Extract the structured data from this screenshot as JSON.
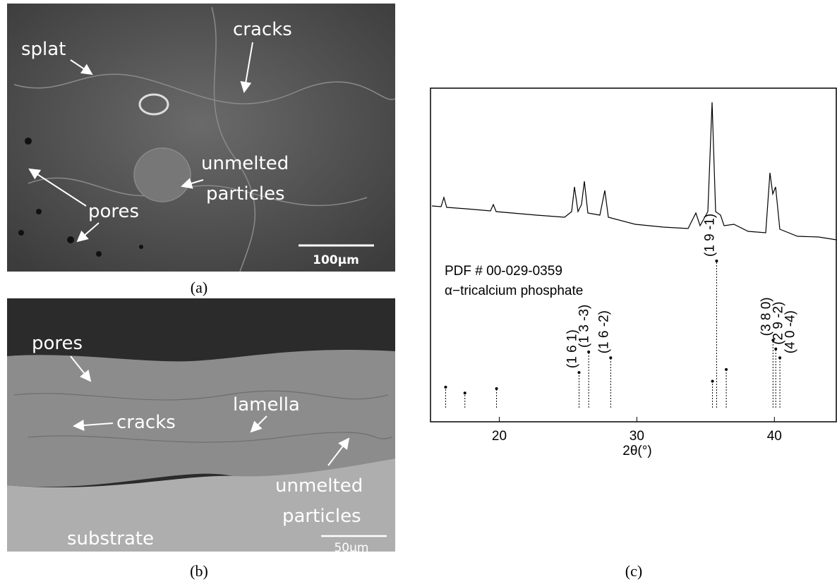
{
  "panel_a": {
    "caption": "(a)",
    "annotations": [
      "splat",
      "cracks",
      "unmelted",
      "particles",
      "pores"
    ],
    "scale_bar": "100μm"
  },
  "panel_b": {
    "caption": "(b)",
    "annotations": [
      "pores",
      "cracks",
      "lamella",
      "unmelted",
      "particles",
      "substrate"
    ],
    "scale_bar": "50μm"
  },
  "panel_c": {
    "caption": "(c)",
    "xlabel": "2θ(°)",
    "xlim": [
      15,
      44.5
    ],
    "xticks": [
      20,
      30,
      40
    ],
    "reference": [
      "PDF # 00-029-0359",
      "α−tricalcium phosphate"
    ],
    "peaks": [
      {
        "x": 16.1,
        "intensity": 14
      },
      {
        "x": 17.5,
        "intensity": 10
      },
      {
        "x": 19.8,
        "intensity": 13
      },
      {
        "x": 25.8,
        "intensity": 24,
        "label": "(1 6 1)"
      },
      {
        "x": 26.5,
        "intensity": 38,
        "label": "(1 3 -3)"
      },
      {
        "x": 28.1,
        "intensity": 34,
        "label": "(1 6 -2)"
      },
      {
        "x": 35.5,
        "intensity": 18
      },
      {
        "x": 35.8,
        "intensity": 100,
        "label": "(1 9 -1)"
      },
      {
        "x": 36.5,
        "intensity": 26
      },
      {
        "x": 39.9,
        "intensity": 46,
        "label": "(3 8 0)"
      },
      {
        "x": 40.1,
        "intensity": 40,
        "label": "(2 9 -2)"
      },
      {
        "x": 40.4,
        "intensity": 34,
        "label": "(4 0 -4)"
      }
    ]
  }
}
